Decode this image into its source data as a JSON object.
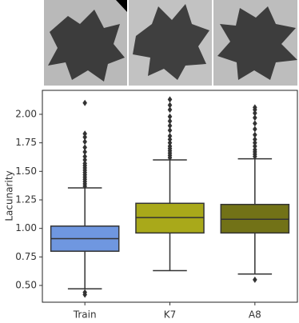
{
  "chart_data": {
    "type": "box",
    "ylabel": "Lacunarity",
    "categories": [
      "Train",
      "K7",
      "A8"
    ],
    "colors": [
      "#6f97e0",
      "#a9a91a",
      "#727217"
    ],
    "boxes": [
      {
        "whislo": 0.47,
        "q1": 0.8,
        "med": 0.91,
        "q3": 1.02,
        "whishi": 1.355,
        "fliers": [
          0.44,
          0.42,
          1.37,
          1.39,
          1.41,
          1.43,
          1.45,
          1.47,
          1.49,
          1.51,
          1.53,
          1.55,
          1.57,
          1.6,
          1.63,
          1.67,
          1.71,
          1.76,
          1.8,
          1.83,
          2.1
        ]
      },
      {
        "whislo": 0.63,
        "q1": 0.96,
        "med": 1.095,
        "q3": 1.22,
        "whishi": 1.6,
        "fliers": [
          1.62,
          1.64,
          1.66,
          1.68,
          1.7,
          1.72,
          1.75,
          1.78,
          1.81,
          1.86,
          1.9,
          1.94,
          1.98,
          2.04,
          2.08,
          2.13
        ]
      },
      {
        "whislo": 0.6,
        "q1": 0.96,
        "med": 1.08,
        "q3": 1.21,
        "whishi": 1.61,
        "fliers": [
          0.55,
          1.63,
          1.65,
          1.67,
          1.69,
          1.72,
          1.75,
          1.78,
          1.82,
          1.87,
          1.92,
          1.97,
          2.01,
          2.04,
          2.06
        ]
      }
    ],
    "ylim": [
      0.353,
      2.21
    ],
    "yticks": [
      {
        "value": 0.5,
        "label": "0.50"
      },
      {
        "value": 0.75,
        "label": "0.75"
      },
      {
        "value": 1.0,
        "label": "1.00"
      },
      {
        "value": 1.25,
        "label": "1.25"
      },
      {
        "value": 1.5,
        "label": "1.50"
      },
      {
        "value": 1.75,
        "label": "1.75"
      },
      {
        "value": 2.0,
        "label": "2.00"
      }
    ]
  }
}
